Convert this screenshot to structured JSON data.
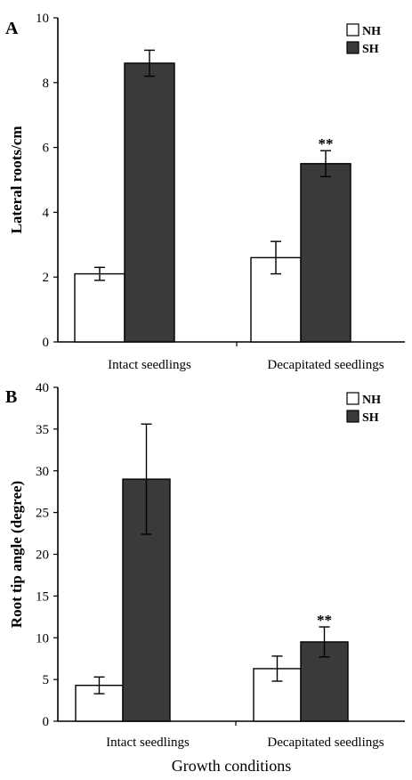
{
  "chart_data": [
    {
      "type": "bar",
      "panel_label": "A",
      "categories": [
        "Intact seedlings",
        "Decapitated seedlings"
      ],
      "series": [
        {
          "name": "NH",
          "values": [
            2.1,
            2.6
          ],
          "errors": [
            0.2,
            0.5
          ],
          "color": "#ffffff"
        },
        {
          "name": "SH",
          "values": [
            8.6,
            5.5
          ],
          "errors": [
            0.4,
            0.4
          ],
          "color": "#3a3a3a"
        }
      ],
      "annotations": [
        {
          "category": 1,
          "series": 1,
          "text": "**"
        }
      ],
      "ylabel": "Lateral roots/cm",
      "xlabel": "",
      "ylim": [
        0,
        10
      ],
      "yticks": [
        0,
        2,
        4,
        6,
        8,
        10
      ],
      "legend": "top-right",
      "grid": false
    },
    {
      "type": "bar",
      "panel_label": "B",
      "categories": [
        "Intact seedlings",
        "Decapitated seedlings"
      ],
      "series": [
        {
          "name": "NH",
          "values": [
            4.3,
            6.3
          ],
          "errors": [
            1.0,
            1.5
          ],
          "color": "#ffffff"
        },
        {
          "name": "SH",
          "values": [
            29.0,
            9.5
          ],
          "errors": [
            6.6,
            1.8
          ],
          "color": "#3a3a3a"
        }
      ],
      "annotations": [
        {
          "category": 1,
          "series": 1,
          "text": "**"
        }
      ],
      "ylabel": "Root tip angle (degree)",
      "xlabel": "Growth conditions",
      "ylim": [
        0,
        40
      ],
      "yticks": [
        0,
        5,
        10,
        15,
        20,
        25,
        30,
        35,
        40
      ],
      "legend": "top-right",
      "grid": false
    }
  ]
}
